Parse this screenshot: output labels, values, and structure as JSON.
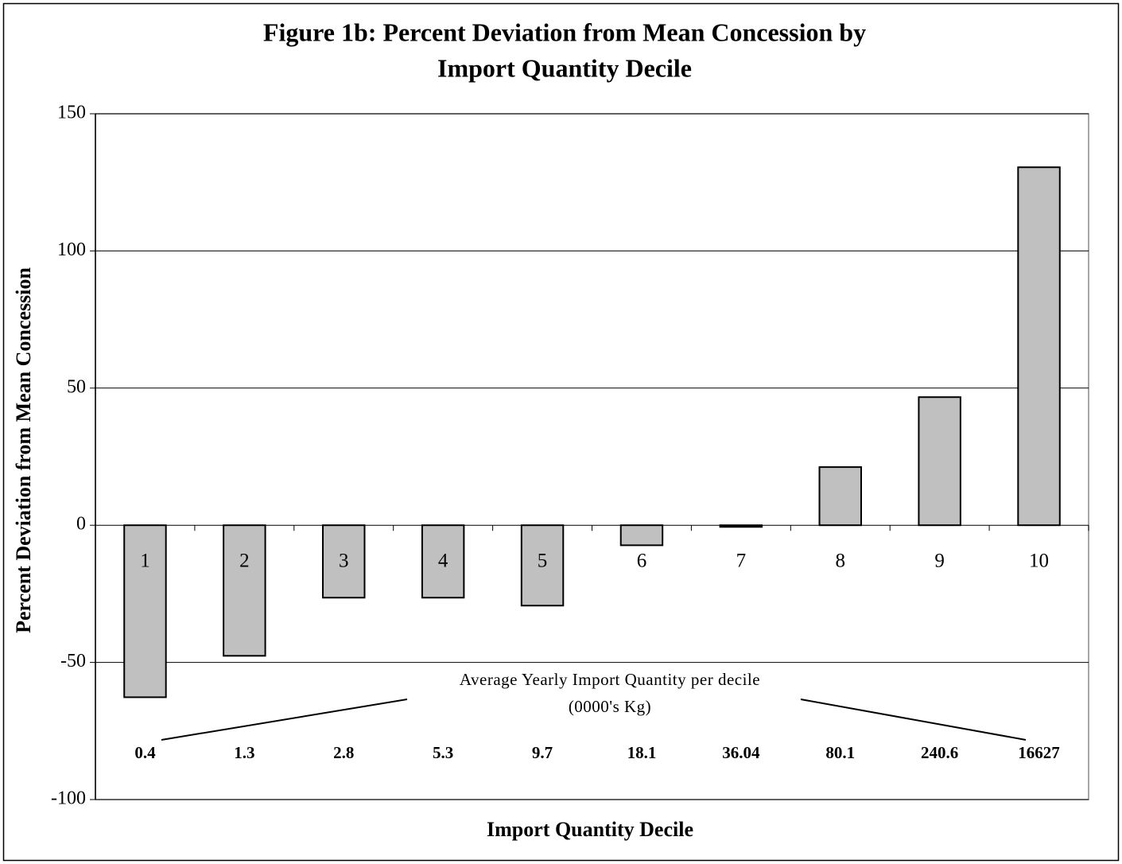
{
  "chart_data": {
    "type": "bar",
    "title": [
      "Figure 1b:  Percent Deviation from Mean Concession by",
      "Import Quantity Decile"
    ],
    "x_label": "Import Quantity Decile",
    "y_label": "Percent Deviation from Mean Concession",
    "categories": [
      "1",
      "2",
      "3",
      "4",
      "5",
      "6",
      "7",
      "8",
      "9",
      "10"
    ],
    "values": [
      -62.7,
      -47.6,
      -26.4,
      -26.4,
      -29.3,
      -7.3,
      -0.6,
      21.2,
      46.7,
      130.5
    ],
    "color": "#c0c0c0",
    "ylim": [
      -100,
      150
    ],
    "yticks": [
      -100,
      -50,
      0,
      50,
      100,
      150
    ],
    "grid": true,
    "annotation": [
      "Average Yearly Import Quantity per decile",
      "(0000's Kg)"
    ],
    "quantity_labels": [
      "0.4",
      "1.3",
      "2.8",
      "5.3",
      "9.7",
      "18.1",
      "36.04",
      "80.1",
      "240.6",
      "16627"
    ]
  }
}
